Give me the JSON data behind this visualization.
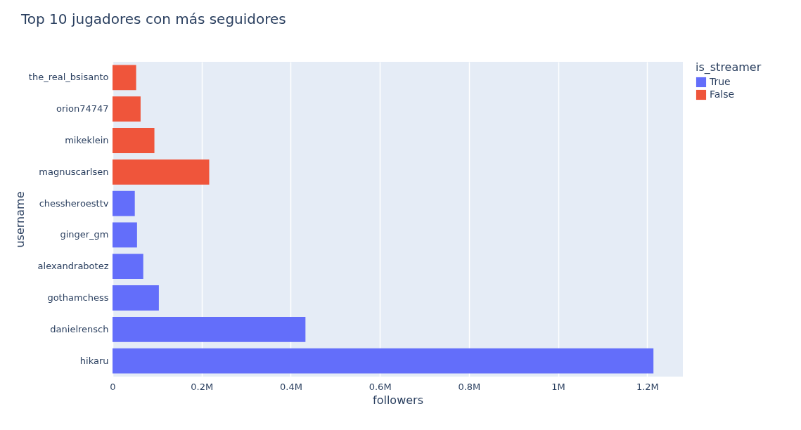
{
  "chart_data": {
    "type": "bar",
    "orientation": "horizontal",
    "title": "Top 10 jugadores con más seguidores",
    "xlabel": "followers",
    "ylabel": "username",
    "legend_title": "is_streamer",
    "legend": "top right",
    "grid": "x",
    "categories": [
      "the_real_bsisanto",
      "orion74747",
      "mikeklein",
      "magnuscarlsen",
      "chessheroesttv",
      "ginger_gm",
      "alexandrabotez",
      "gothamchess",
      "danielrensch",
      "hikaru"
    ],
    "series": [
      {
        "name": "True",
        "color": "#636efa",
        "values": [
          null,
          null,
          null,
          null,
          50000,
          55000,
          69000,
          104000,
          433000,
          1214000
        ]
      },
      {
        "name": "False",
        "color": "#ef553b",
        "values": [
          53000,
          63000,
          94000,
          217000,
          null,
          null,
          null,
          null,
          null,
          null
        ]
      }
    ],
    "xlim": [
      0,
      1280000
    ],
    "xticks": [
      0,
      {
        "value": 200000,
        "label": "0.2M"
      },
      {
        "value": 400000,
        "label": "0.4M"
      },
      {
        "value": 600000,
        "label": "0.6M"
      },
      {
        "value": 800000,
        "label": "0.8M"
      },
      {
        "value": 1000000,
        "label": "1M"
      },
      {
        "value": 1200000,
        "label": "1.2M"
      }
    ]
  }
}
